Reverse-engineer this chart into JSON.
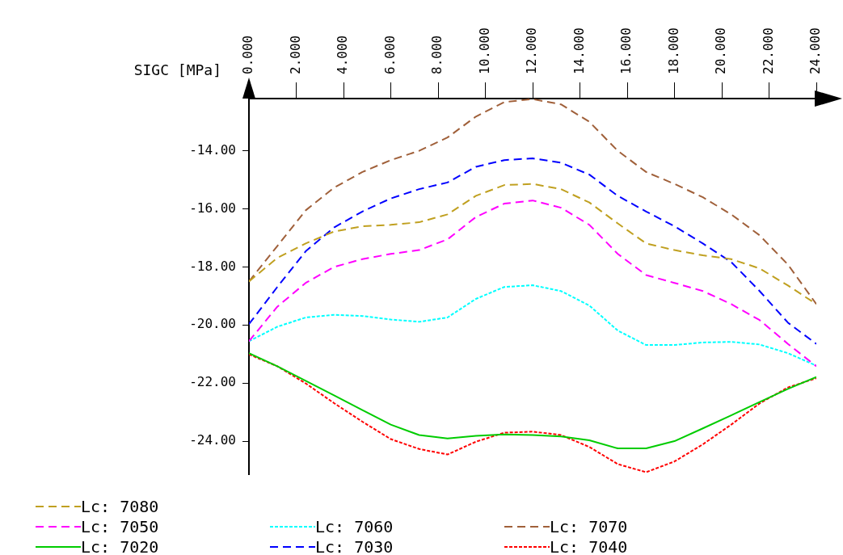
{
  "chart_data": {
    "type": "line",
    "ylabel": "SIGC [MPa]",
    "x": [
      0,
      1.2,
      2.4,
      3.6,
      4.8,
      6,
      7.2,
      8.4,
      9.6,
      10.8,
      12,
      13.2,
      14.4,
      15.6,
      16.8,
      18,
      19.2,
      20.4,
      21.6,
      22.8,
      24
    ],
    "xlim": [
      0,
      24
    ],
    "xticks": [
      {
        "value": 0,
        "label": "0.000"
      },
      {
        "value": 2,
        "label": "2.000"
      },
      {
        "value": 4,
        "label": "4.000"
      },
      {
        "value": 6,
        "label": "6.000"
      },
      {
        "value": 8,
        "label": "8.000"
      },
      {
        "value": 10,
        "label": "10.000"
      },
      {
        "value": 12,
        "label": "12.000"
      },
      {
        "value": 14,
        "label": "14.000"
      },
      {
        "value": 16,
        "label": "16.000"
      },
      {
        "value": 18,
        "label": "18.000"
      },
      {
        "value": 20,
        "label": "20.000"
      },
      {
        "value": 22,
        "label": "22.000"
      },
      {
        "value": 24,
        "label": "24.000"
      }
    ],
    "ylim": [
      -25.15,
      -12.2
    ],
    "yticks": [
      {
        "value": -14,
        "label": "-14.00"
      },
      {
        "value": -16,
        "label": "-16.00"
      },
      {
        "value": -18,
        "label": "-18.00"
      },
      {
        "value": -20,
        "label": "-20.00"
      },
      {
        "value": -22,
        "label": "-22.00"
      },
      {
        "value": -24,
        "label": "-24.00"
      }
    ],
    "grid": false,
    "legend": "bottom",
    "marker": "none",
    "series": [
      {
        "name": "Lc: 7080",
        "color": "#c0a020",
        "line_style": "dashed",
        "values": [
          -18.5,
          -17.69,
          -17.19,
          -16.78,
          -16.6,
          -16.55,
          -16.46,
          -16.19,
          -15.55,
          -15.18,
          -15.14,
          -15.32,
          -15.78,
          -16.5,
          -17.19,
          -17.42,
          -17.6,
          -17.73,
          -18.05,
          -18.64,
          -19.28
        ]
      },
      {
        "name": "Lc: 7050",
        "color": "#ff00ff",
        "line_style": "dashed",
        "values": [
          -20.56,
          -19.37,
          -18.55,
          -18.0,
          -17.73,
          -17.55,
          -17.42,
          -17.05,
          -16.28,
          -15.82,
          -15.71,
          -15.96,
          -16.55,
          -17.55,
          -18.28,
          -18.55,
          -18.83,
          -19.28,
          -19.83,
          -20.65,
          -21.42
        ]
      },
      {
        "name": "Lc: 7060",
        "color": "#00ffff",
        "line_style": "dotted",
        "values": [
          -20.56,
          -20.06,
          -19.74,
          -19.65,
          -19.69,
          -19.81,
          -19.89,
          -19.74,
          -19.1,
          -18.69,
          -18.63,
          -18.83,
          -19.33,
          -20.19,
          -20.69,
          -20.69,
          -20.6,
          -20.58,
          -20.67,
          -20.97,
          -21.4
        ]
      },
      {
        "name": "Lc: 7070",
        "color": "#a0603a",
        "line_style": "dashed",
        "values": [
          -18.5,
          -17.28,
          -16.05,
          -15.27,
          -14.73,
          -14.32,
          -14.0,
          -13.54,
          -12.82,
          -12.32,
          -12.22,
          -12.4,
          -13.0,
          -14.0,
          -14.73,
          -15.14,
          -15.6,
          -16.19,
          -16.91,
          -17.92,
          -19.28
        ]
      },
      {
        "name": "Lc: 7020",
        "color": "#00cc00",
        "line_style": "solid",
        "values": [
          -20.97,
          -21.42,
          -21.92,
          -22.42,
          -22.93,
          -23.43,
          -23.79,
          -23.91,
          -23.82,
          -23.77,
          -23.79,
          -23.84,
          -23.97,
          -24.25,
          -24.25,
          -24.0,
          -23.56,
          -23.11,
          -22.65,
          -22.2,
          -21.79
        ]
      },
      {
        "name": "Lc: 7030",
        "color": "#0000ff",
        "line_style": "dashed",
        "values": [
          -19.97,
          -18.69,
          -17.46,
          -16.64,
          -16.09,
          -15.64,
          -15.32,
          -15.09,
          -14.55,
          -14.32,
          -14.26,
          -14.41,
          -14.82,
          -15.55,
          -16.09,
          -16.6,
          -17.19,
          -17.83,
          -18.83,
          -19.92,
          -20.65
        ]
      },
      {
        "name": "Lc: 7040",
        "color": "#ff0000",
        "line_style": "dotted",
        "values": [
          -21.01,
          -21.42,
          -22.01,
          -22.69,
          -23.33,
          -23.93,
          -24.27,
          -24.46,
          -24.02,
          -23.71,
          -23.67,
          -23.79,
          -24.2,
          -24.79,
          -25.07,
          -24.7,
          -24.11,
          -23.43,
          -22.7,
          -22.15,
          -21.83
        ]
      }
    ]
  }
}
